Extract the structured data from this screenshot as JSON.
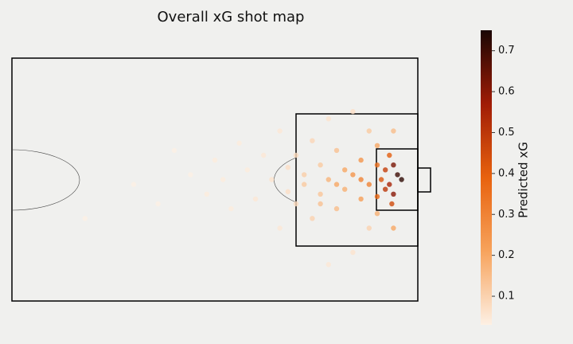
{
  "chart_data": {
    "type": "scatter",
    "title": "Overall xG shot map",
    "colorbar_label": "Predicted xG",
    "xlim": [
      50,
      100
    ],
    "ylim": [
      0,
      100
    ],
    "clim": [
      0.03,
      0.75
    ],
    "cticks": [
      0.1,
      0.2,
      0.3,
      0.4,
      0.5,
      0.6,
      0.7
    ],
    "colormap": [
      "#fdf0e4",
      "#f7a35c",
      "#e8620e",
      "#a01c06",
      "#1a0604"
    ],
    "x": [
      97,
      97.5,
      96.5,
      97,
      96,
      96,
      95.5,
      95,
      95,
      98,
      96.8,
      96.5,
      93,
      93,
      93,
      91,
      91,
      90,
      90,
      89,
      88,
      88,
      87,
      87,
      86,
      86,
      85,
      85,
      84,
      84,
      83,
      83,
      82,
      81,
      80,
      79,
      78,
      77,
      76,
      75,
      74,
      72,
      70,
      68,
      65,
      59,
      94,
      94,
      92,
      92,
      89,
      89,
      95,
      95,
      97,
      97,
      88,
      90,
      92,
      94
    ],
    "y": [
      44,
      48,
      52,
      56,
      46,
      54,
      50,
      44,
      57,
      50,
      60,
      40,
      42,
      50,
      58,
      46,
      54,
      38,
      62,
      50,
      44,
      56,
      34,
      66,
      48,
      52,
      40,
      60,
      45,
      55,
      30,
      70,
      50,
      40,
      58,
      46,
      35,
      62,
      50,
      42,
      56,
      48,
      38,
      60,
      52,
      66,
      30,
      70,
      22,
      80,
      25,
      85,
      36,
      64,
      70,
      30,
      60,
      52,
      48,
      52
    ],
    "values": [
      0.62,
      0.7,
      0.55,
      0.6,
      0.48,
      0.5,
      0.42,
      0.35,
      0.38,
      0.72,
      0.45,
      0.4,
      0.25,
      0.3,
      0.22,
      0.2,
      0.18,
      0.14,
      0.15,
      0.17,
      0.12,
      0.13,
      0.09,
      0.1,
      0.11,
      0.12,
      0.08,
      0.08,
      0.07,
      0.07,
      0.05,
      0.05,
      0.06,
      0.05,
      0.05,
      0.04,
      0.04,
      0.04,
      0.04,
      0.04,
      0.04,
      0.03,
      0.03,
      0.03,
      0.03,
      0.03,
      0.12,
      0.1,
      0.07,
      0.06,
      0.06,
      0.05,
      0.2,
      0.18,
      0.2,
      0.15,
      0.14,
      0.2,
      0.25,
      0.3
    ]
  }
}
